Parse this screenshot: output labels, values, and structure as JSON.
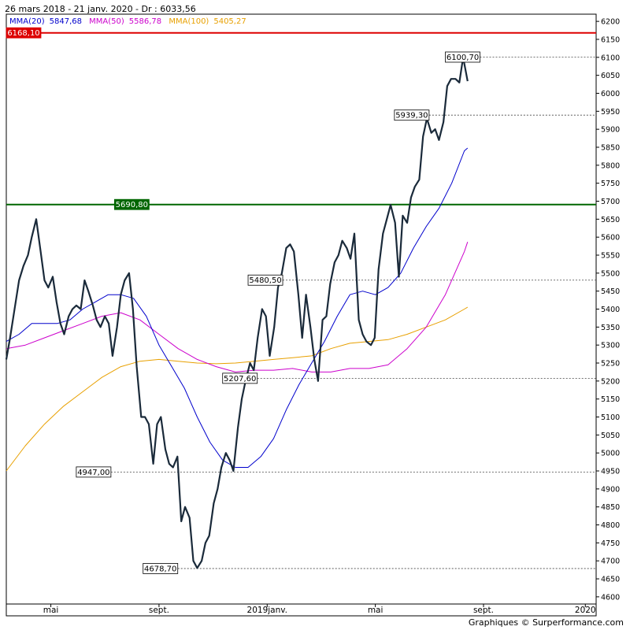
{
  "header": "26 mars 2018 - 21 janv. 2020 - Dr : 6033,56",
  "legend": [
    {
      "label": "MMA(20)",
      "value": "5847,68",
      "color": "#0000cc"
    },
    {
      "label": "MMA(50)",
      "value": "5586,78",
      "color": "#cc00cc"
    },
    {
      "label": "MMA(100)",
      "value": "5405,27",
      "color": "#e8a000"
    }
  ],
  "footer": "Graphiques © Surperformance.com",
  "chart_data": {
    "type": "line",
    "ylim": [
      4580,
      6220
    ],
    "y_ticks": [
      4600,
      4650,
      4700,
      4750,
      4800,
      4850,
      4900,
      4950,
      5000,
      5050,
      5100,
      5150,
      5200,
      5250,
      5300,
      5350,
      5400,
      5450,
      5500,
      5550,
      5600,
      5650,
      5700,
      5750,
      5800,
      5850,
      5900,
      5950,
      6000,
      6050,
      6100,
      6150,
      6200
    ],
    "x_ticks": [
      {
        "label": "mai",
        "t": 7
      },
      {
        "label": "sept.",
        "t": 24
      },
      {
        "label": "2019janv.",
        "t": 41
      },
      {
        "label": "mai",
        "t": 58
      },
      {
        "label": "sept.",
        "t": 75
      },
      {
        "label": "2020",
        "t": 91
      }
    ],
    "x_range": [
      0,
      92.7
    ],
    "price": {
      "name": "",
      "color": "#1a2a3a",
      "points": [
        [
          0,
          5260
        ],
        [
          0.6,
          5320
        ],
        [
          1.3,
          5400
        ],
        [
          2,
          5480
        ],
        [
          2.7,
          5520
        ],
        [
          3.4,
          5550
        ],
        [
          4,
          5600
        ],
        [
          4.7,
          5650
        ],
        [
          5.4,
          5560
        ],
        [
          6,
          5480
        ],
        [
          6.6,
          5460
        ],
        [
          7.3,
          5490
        ],
        [
          7.9,
          5420
        ],
        [
          8.5,
          5360
        ],
        [
          9.1,
          5330
        ],
        [
          9.8,
          5380
        ],
        [
          10.4,
          5400
        ],
        [
          11,
          5410
        ],
        [
          11.7,
          5400
        ],
        [
          12.3,
          5480
        ],
        [
          12.9,
          5450
        ],
        [
          13.6,
          5410
        ],
        [
          14.2,
          5370
        ],
        [
          14.8,
          5350
        ],
        [
          15.5,
          5380
        ],
        [
          16.1,
          5360
        ],
        [
          16.7,
          5270
        ],
        [
          17.4,
          5350
        ],
        [
          18,
          5440
        ],
        [
          18.6,
          5480
        ],
        [
          19.3,
          5500
        ],
        [
          19.9,
          5400
        ],
        [
          20.5,
          5240
        ],
        [
          21.2,
          5100
        ],
        [
          21.8,
          5100
        ],
        [
          22.4,
          5080
        ],
        [
          23.1,
          4970
        ],
        [
          23.7,
          5080
        ],
        [
          24.3,
          5100
        ],
        [
          25,
          5010
        ],
        [
          25.6,
          4970
        ],
        [
          26.2,
          4960
        ],
        [
          26.9,
          4990
        ],
        [
          27.5,
          4810
        ],
        [
          28.1,
          4850
        ],
        [
          28.8,
          4820
        ],
        [
          29.4,
          4700
        ],
        [
          30,
          4680
        ],
        [
          30.7,
          4700
        ],
        [
          31.3,
          4750
        ],
        [
          31.9,
          4770
        ],
        [
          32.6,
          4860
        ],
        [
          33.2,
          4900
        ],
        [
          33.8,
          4960
        ],
        [
          34.5,
          5000
        ],
        [
          35.1,
          4980
        ],
        [
          35.7,
          4950
        ],
        [
          36.4,
          5070
        ],
        [
          37,
          5150
        ],
        [
          37.6,
          5200
        ],
        [
          38.3,
          5250
        ],
        [
          38.9,
          5230
        ],
        [
          39.5,
          5320
        ],
        [
          40.2,
          5400
        ],
        [
          40.8,
          5380
        ],
        [
          41.4,
          5270
        ],
        [
          42.1,
          5350
        ],
        [
          42.7,
          5460
        ],
        [
          43.3,
          5500
        ],
        [
          44,
          5570
        ],
        [
          44.6,
          5580
        ],
        [
          45.2,
          5560
        ],
        [
          45.9,
          5440
        ],
        [
          46.5,
          5320
        ],
        [
          47.1,
          5440
        ],
        [
          47.8,
          5350
        ],
        [
          48.4,
          5260
        ],
        [
          49,
          5200
        ],
        [
          49.7,
          5370
        ],
        [
          50.3,
          5380
        ],
        [
          50.9,
          5470
        ],
        [
          51.6,
          5530
        ],
        [
          52.2,
          5550
        ],
        [
          52.8,
          5590
        ],
        [
          53.5,
          5570
        ],
        [
          54.1,
          5540
        ],
        [
          54.7,
          5610
        ],
        [
          55.4,
          5370
        ],
        [
          56,
          5330
        ],
        [
          56.6,
          5310
        ],
        [
          57.3,
          5300
        ],
        [
          57.9,
          5320
        ],
        [
          58.5,
          5510
        ],
        [
          59.2,
          5610
        ],
        [
          59.8,
          5650
        ],
        [
          60.4,
          5690
        ],
        [
          61.1,
          5640
        ],
        [
          61.7,
          5490
        ],
        [
          62.3,
          5660
        ],
        [
          63,
          5640
        ],
        [
          63.6,
          5710
        ],
        [
          64.2,
          5740
        ],
        [
          64.9,
          5760
        ],
        [
          65.5,
          5880
        ],
        [
          66.1,
          5930
        ],
        [
          66.8,
          5890
        ],
        [
          67.4,
          5900
        ],
        [
          68,
          5870
        ],
        [
          68.7,
          5920
        ],
        [
          69.3,
          6020
        ],
        [
          69.9,
          6040
        ],
        [
          70.6,
          6040
        ],
        [
          71.2,
          6030
        ],
        [
          71.8,
          6100
        ],
        [
          72.5,
          6033.56
        ]
      ]
    },
    "mma20": {
      "name": "MMA(20)",
      "color": "#0000cc",
      "points": [
        [
          0,
          5310
        ],
        [
          2,
          5330
        ],
        [
          4,
          5360
        ],
        [
          6,
          5360
        ],
        [
          8,
          5360
        ],
        [
          10,
          5370
        ],
        [
          12,
          5400
        ],
        [
          14,
          5420
        ],
        [
          16,
          5440
        ],
        [
          18,
          5440
        ],
        [
          20,
          5430
        ],
        [
          22,
          5380
        ],
        [
          24,
          5300
        ],
        [
          26,
          5240
        ],
        [
          28,
          5180
        ],
        [
          30,
          5100
        ],
        [
          32,
          5030
        ],
        [
          34,
          4980
        ],
        [
          36,
          4960
        ],
        [
          38,
          4960
        ],
        [
          40,
          4990
        ],
        [
          42,
          5040
        ],
        [
          44,
          5120
        ],
        [
          46,
          5190
        ],
        [
          48,
          5250
        ],
        [
          50,
          5310
        ],
        [
          52,
          5380
        ],
        [
          54,
          5440
        ],
        [
          56,
          5450
        ],
        [
          58,
          5440
        ],
        [
          60,
          5460
        ],
        [
          62,
          5500
        ],
        [
          64,
          5570
        ],
        [
          66,
          5630
        ],
        [
          68,
          5680
        ],
        [
          70,
          5750
        ],
        [
          72,
          5840
        ],
        [
          72.5,
          5847.68
        ]
      ]
    },
    "mma50": {
      "name": "MMA(50)",
      "color": "#cc00cc",
      "points": [
        [
          0,
          5290
        ],
        [
          3,
          5300
        ],
        [
          6,
          5320
        ],
        [
          9,
          5340
        ],
        [
          12,
          5360
        ],
        [
          15,
          5380
        ],
        [
          18,
          5390
        ],
        [
          21,
          5370
        ],
        [
          24,
          5330
        ],
        [
          27,
          5290
        ],
        [
          30,
          5260
        ],
        [
          33,
          5240
        ],
        [
          36,
          5225
        ],
        [
          39,
          5230
        ],
        [
          42,
          5230
        ],
        [
          45,
          5235
        ],
        [
          48,
          5225
        ],
        [
          51,
          5225
        ],
        [
          54,
          5235
        ],
        [
          57,
          5235
        ],
        [
          60,
          5245
        ],
        [
          63,
          5290
        ],
        [
          66,
          5350
        ],
        [
          69,
          5440
        ],
        [
          72,
          5560
        ],
        [
          72.5,
          5586.78
        ]
      ]
    },
    "mma100": {
      "name": "MMA(100)",
      "color": "#e8a000",
      "points": [
        [
          0,
          4950
        ],
        [
          3,
          5020
        ],
        [
          6,
          5080
        ],
        [
          9,
          5130
        ],
        [
          12,
          5170
        ],
        [
          15,
          5210
        ],
        [
          18,
          5240
        ],
        [
          21,
          5255
        ],
        [
          24,
          5260
        ],
        [
          27,
          5255
        ],
        [
          30,
          5250
        ],
        [
          33,
          5248
        ],
        [
          36,
          5250
        ],
        [
          39,
          5255
        ],
        [
          42,
          5260
        ],
        [
          45,
          5265
        ],
        [
          48,
          5270
        ],
        [
          51,
          5290
        ],
        [
          54,
          5305
        ],
        [
          57,
          5310
        ],
        [
          60,
          5315
        ],
        [
          63,
          5330
        ],
        [
          66,
          5350
        ],
        [
          69,
          5370
        ],
        [
          72,
          5400
        ],
        [
          72.5,
          5405.27
        ]
      ]
    },
    "levels": [
      {
        "value": 6168.1,
        "label": "6168,10",
        "color": "#dd0000",
        "style": "solid-red",
        "label_bg": "#dd0000",
        "label_fg": "#ffffff",
        "label_at": 0
      },
      {
        "value": 6100.7,
        "label": "6100,70",
        "color": "#444",
        "style": "dotted",
        "label_bg": "#ffffff",
        "label_fg": "#000",
        "label_at": 69
      },
      {
        "value": 5939.3,
        "label": "5939,30",
        "color": "#444",
        "style": "dotted",
        "label_bg": "#ffffff",
        "label_fg": "#000",
        "label_at": 61
      },
      {
        "value": 5690.8,
        "label": "5690,80",
        "color": "#006600",
        "style": "solid-green",
        "label_bg": "#006600",
        "label_fg": "#ffffff",
        "label_at": 17
      },
      {
        "value": 5480.5,
        "label": "5480,50",
        "color": "#444",
        "style": "dotted",
        "label_bg": "#ffffff",
        "label_fg": "#000",
        "label_at": 38
      },
      {
        "value": 5207.6,
        "label": "5207,60",
        "color": "#444",
        "style": "dotted",
        "label_bg": "#ffffff",
        "label_fg": "#000",
        "label_at": 34
      },
      {
        "value": 4947.0,
        "label": "4947,00",
        "color": "#444",
        "style": "dotted",
        "label_bg": "#ffffff",
        "label_fg": "#000",
        "label_at": 11
      },
      {
        "value": 4678.7,
        "label": "4678,70",
        "color": "#444",
        "style": "dotted",
        "label_bg": "#ffffff",
        "label_fg": "#000",
        "label_at": 21.5
      }
    ]
  }
}
